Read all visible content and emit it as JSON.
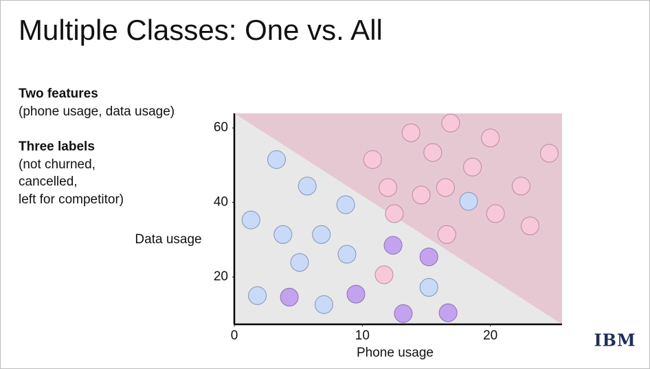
{
  "title": "Multiple Classes: One vs. All",
  "notes": [
    {
      "heading": "Two features",
      "lines": [
        "(phone usage, data usage)"
      ]
    },
    {
      "heading": "Three labels",
      "lines": [
        "(not churned,",
        "cancelled,",
        "left for competitor)"
      ]
    }
  ],
  "logo": "IBM",
  "chart_data": {
    "type": "scatter",
    "x_label": "Phone usage",
    "y_label": "Data usage",
    "xlim": [
      0,
      25.6
    ],
    "ylim": [
      7.3,
      63.9
    ],
    "xticks": [
      0,
      10,
      20
    ],
    "yticks": [
      20,
      40,
      60
    ],
    "region_colors": [
      "#e8e8e8",
      "#e6c8d3"
    ],
    "series": [
      {
        "color": "#c8daf7",
        "stroke": "#8393b5",
        "x": [
          3.3,
          5.7,
          8.7,
          1.3,
          3.8,
          6.8,
          5.1,
          8.8,
          1.8,
          7.0,
          15.2,
          18.3
        ],
        "values": [
          51.5,
          44.4,
          39.4,
          35.3,
          31.4,
          31.4,
          23.9,
          26.1,
          15.0,
          12.6,
          17.2,
          40.3
        ]
      },
      {
        "color": "#c3a2f0",
        "stroke": "#8a73b0",
        "x": [
          4.3,
          9.5,
          12.4,
          15.2,
          13.2,
          16.7
        ],
        "values": [
          14.6,
          15.4,
          28.5,
          25.4,
          10.2,
          10.4
        ]
      },
      {
        "color": "#f7c7da",
        "stroke": "#b88b9c",
        "x": [
          13.8,
          16.9,
          20.0,
          10.8,
          15.5,
          18.6,
          24.6,
          12.0,
          14.6,
          16.5,
          22.4,
          12.5,
          20.4,
          23.1,
          16.6,
          11.7
        ],
        "values": [
          58.7,
          61.3,
          57.3,
          51.5,
          53.4,
          49.5,
          53.2,
          44.0,
          42.0,
          44.0,
          44.4,
          37.0,
          37.0,
          33.7,
          31.4,
          20.6
        ]
      }
    ]
  }
}
